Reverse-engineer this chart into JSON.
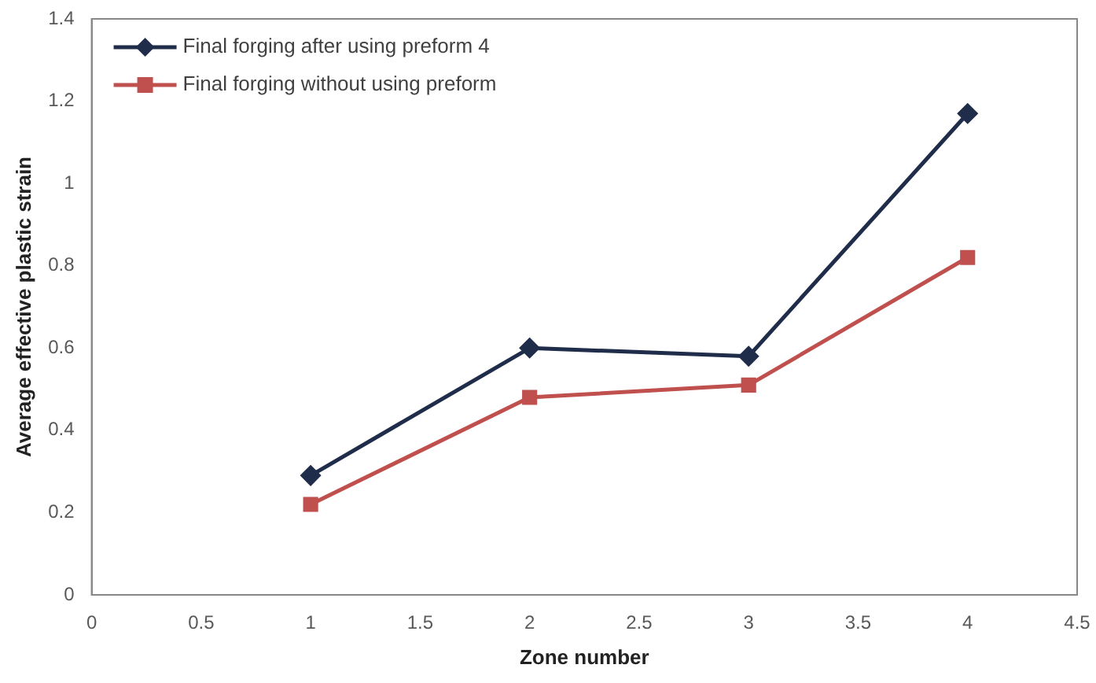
{
  "chart_data": {
    "type": "line",
    "xlabel": "Zone number",
    "ylabel": "Average effective plastic strain",
    "x": [
      1,
      2,
      3,
      4
    ],
    "series": [
      {
        "name": "Final forging after using preform 4",
        "color": "#1f2d4a",
        "marker": "diamond",
        "values": [
          0.29,
          0.6,
          0.58,
          1.17
        ]
      },
      {
        "name": "Final forging without using preform",
        "color": "#c0504d",
        "marker": "square",
        "values": [
          0.22,
          0.48,
          0.51,
          0.82
        ]
      }
    ],
    "xlim": [
      0,
      4.5
    ],
    "xticks": [
      0,
      0.5,
      1,
      1.5,
      2,
      2.5,
      3,
      3.5,
      4,
      4.5
    ],
    "ylim": [
      0,
      1.4
    ],
    "yticks": [
      0,
      0.2,
      0.4,
      0.6,
      0.8,
      1,
      1.2,
      1.4
    ],
    "grid": false,
    "legend": "top left",
    "line_style": "solid"
  }
}
